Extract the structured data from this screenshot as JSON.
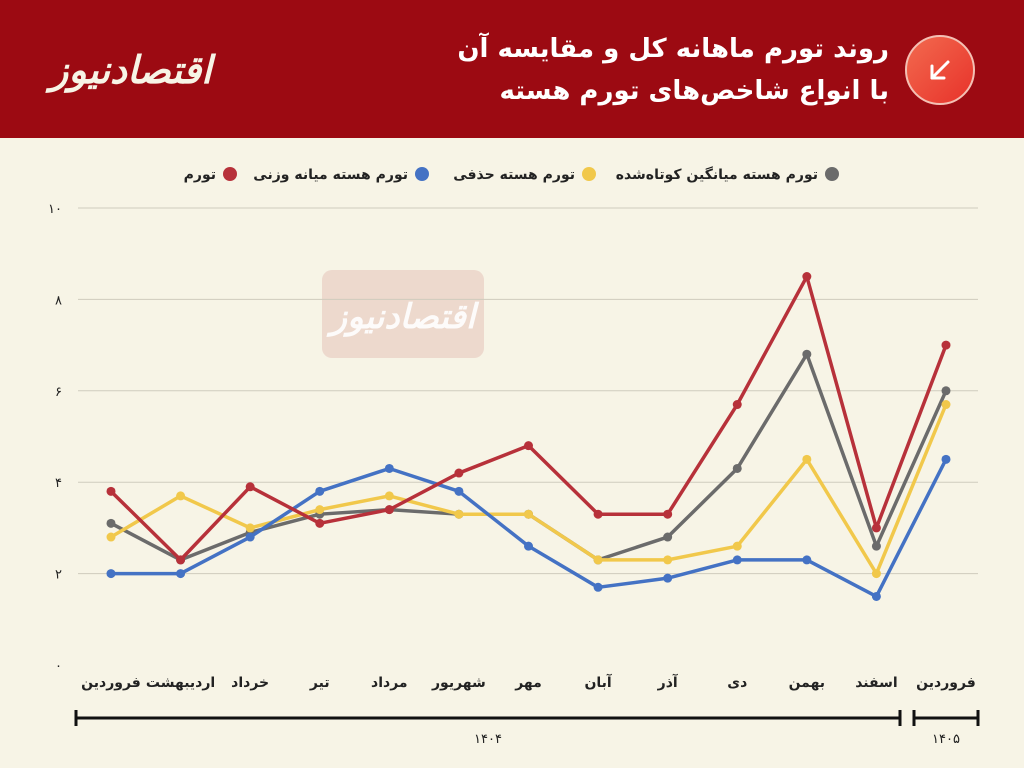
{
  "header": {
    "logo_text": "اقتصادنیوز",
    "title_line1": "روند تورم ماهانه کل و مقایسه آن",
    "title_line2": "با انواع شاخص‌های تورم هسته"
  },
  "watermark_text": "اقتصادنیوز",
  "colors": {
    "header_bg": "#9c0a12",
    "background": "#f7f4e6",
    "badge_from": "#f26a4f",
    "badge_to": "#e8322a"
  },
  "icons": {
    "badge": "arrow-down-left-icon"
  },
  "chart_data": {
    "type": "line",
    "categories": [
      "فروردین",
      "اردیبهشت",
      "خرداد",
      "تیر",
      "مرداد",
      "شهریور",
      "مهر",
      "آبان",
      "آذر",
      "دی",
      "بهمن",
      "اسفند",
      "فروردین"
    ],
    "series": [
      {
        "name": "تورم",
        "color": "#b7313a",
        "values": [
          3.8,
          2.3,
          3.9,
          3.1,
          3.4,
          4.2,
          4.8,
          3.3,
          3.3,
          5.7,
          8.5,
          3.0,
          7.0
        ]
      },
      {
        "name": "تورم هسته میانه وزنی",
        "color": "#4472c4",
        "values": [
          2.0,
          2.0,
          2.8,
          3.8,
          4.3,
          3.8,
          2.6,
          1.7,
          1.9,
          2.3,
          2.3,
          1.5,
          4.5
        ]
      },
      {
        "name": "تورم هسته حذفی",
        "color": "#f1c84b",
        "values": [
          2.8,
          3.7,
          3.0,
          3.4,
          3.7,
          3.3,
          3.3,
          2.3,
          2.3,
          2.6,
          4.5,
          2.0,
          5.7
        ]
      },
      {
        "name": "تورم هسته میانگین کوتاه‌شده",
        "color": "#6b6b6b",
        "values": [
          3.1,
          2.3,
          2.9,
          3.3,
          3.4,
          3.3,
          3.3,
          2.3,
          2.8,
          4.3,
          6.8,
          2.6,
          6.0
        ]
      }
    ],
    "ylim": [
      0,
      10
    ],
    "yticks": [
      0,
      2,
      4,
      6,
      8,
      10
    ],
    "ytick_labels": [
      "۰",
      "۲",
      "۴",
      "۶",
      "۸",
      "۱۰"
    ],
    "grid": true,
    "legend_position": "top",
    "year_groups": [
      {
        "label": "۱۴۰۴",
        "start": 0,
        "end": 11
      },
      {
        "label": "۱۴۰۵",
        "start": 12,
        "end": 12
      }
    ]
  }
}
